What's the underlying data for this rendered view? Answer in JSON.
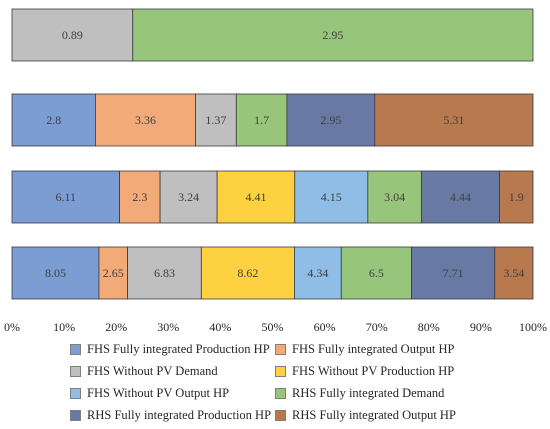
{
  "chart_data": {
    "type": "bar",
    "orientation": "horizontal",
    "stacking": "percent",
    "grid": false,
    "legend_position": "bottom",
    "xlim": [
      0,
      100
    ],
    "x_ticks": [
      "0%",
      "10%",
      "20%",
      "30%",
      "40%",
      "50%",
      "60%",
      "70%",
      "80%",
      "90%",
      "100%"
    ],
    "rows": [
      {
        "segments": [
          {
            "series": 2,
            "value": 0.89,
            "label": "0.89"
          },
          {
            "series": 5,
            "value": 2.95,
            "label": "2.95"
          }
        ]
      },
      {
        "segments": [
          {
            "series": 0,
            "value": 2.8,
            "label": "2.8"
          },
          {
            "series": 1,
            "value": 3.36,
            "label": "3.36"
          },
          {
            "series": 2,
            "value": 1.37,
            "label": "1.37"
          },
          {
            "series": 5,
            "value": 1.7,
            "label": "1.7"
          },
          {
            "series": 6,
            "value": 2.95,
            "label": "2.95"
          },
          {
            "series": 7,
            "value": 5.31,
            "label": "5.31"
          }
        ]
      },
      {
        "segments": [
          {
            "series": 0,
            "value": 6.11,
            "label": "6.11"
          },
          {
            "series": 1,
            "value": 2.3,
            "label": "2.3"
          },
          {
            "series": 2,
            "value": 3.24,
            "label": "3.24"
          },
          {
            "series": 3,
            "value": 4.41,
            "label": "4.41"
          },
          {
            "series": 4,
            "value": 4.15,
            "label": "4.15"
          },
          {
            "series": 5,
            "value": 3.04,
            "label": "3.04"
          },
          {
            "series": 6,
            "value": 4.44,
            "label": "4.44"
          },
          {
            "series": 7,
            "value": 1.9,
            "label": "1.9"
          }
        ]
      },
      {
        "segments": [
          {
            "series": 0,
            "value": 8.05,
            "label": "8.05"
          },
          {
            "series": 1,
            "value": 2.65,
            "label": "2.65"
          },
          {
            "series": 2,
            "value": 6.83,
            "label": "6.83"
          },
          {
            "series": 3,
            "value": 8.62,
            "label": "8.62"
          },
          {
            "series": 4,
            "value": 4.34,
            "label": "4.34"
          },
          {
            "series": 5,
            "value": 6.5,
            "label": "6.5"
          },
          {
            "series": 6,
            "value": 7.71,
            "label": "7.71"
          },
          {
            "series": 7,
            "value": 3.54,
            "label": "3.54"
          }
        ]
      }
    ],
    "series": [
      {
        "name": "FHS Fully integrated Production HP",
        "color": "#7c9cd4"
      },
      {
        "name": "FHS Fully integrated Output HP",
        "color": "#f2aa78"
      },
      {
        "name": "FHS Without PV Demand",
        "color": "#bfbfbf"
      },
      {
        "name": "FHS Without PV Production HP",
        "color": "#fdd13f"
      },
      {
        "name": "FHS Without PV Output HP",
        "color": "#8fbde6"
      },
      {
        "name": "RHS Fully integrated Demand",
        "color": "#98c57c"
      },
      {
        "name": "RHS Fully integrated Production HP",
        "color": "#687aa4"
      },
      {
        "name": "RHS Fully integrated Output HP",
        "color": "#b9794e"
      }
    ]
  }
}
